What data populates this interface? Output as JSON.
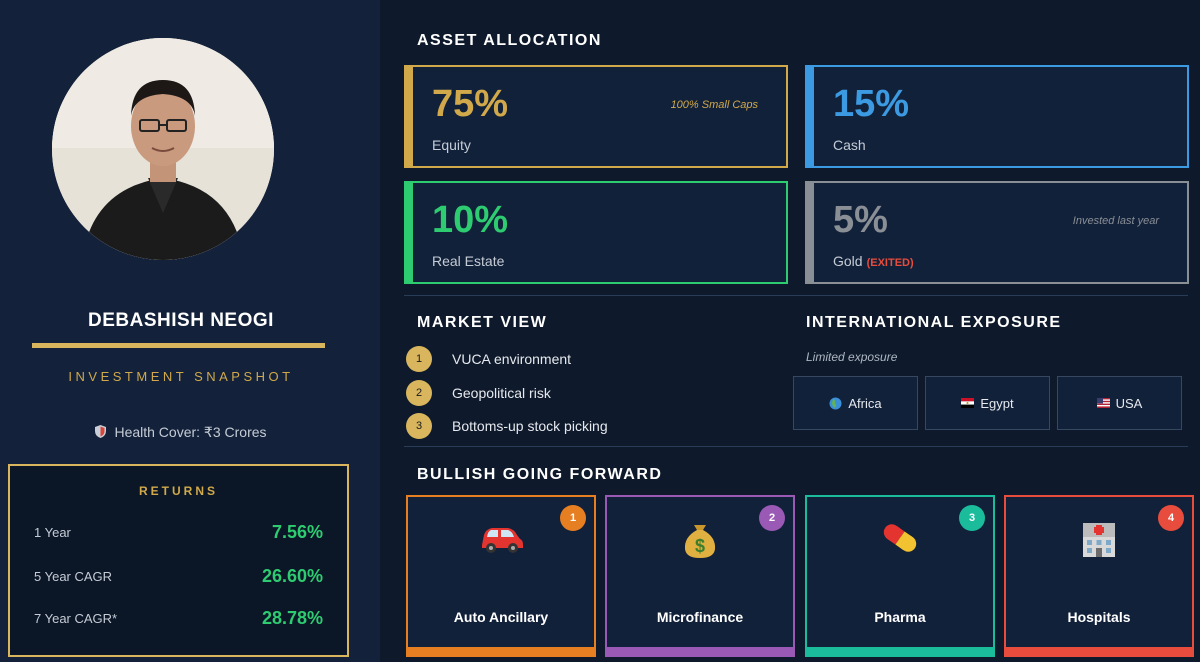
{
  "profile": {
    "name": "DEBASHISH NEOGI",
    "subtitle": "INVESTMENT SNAPSHOT",
    "health_cover": "Health Cover: ₹3 Crores"
  },
  "returns": {
    "title": "RETURNS",
    "rows": [
      {
        "label": "1 Year",
        "value": "7.56%"
      },
      {
        "label": "5 Year CAGR",
        "value": "26.60%"
      },
      {
        "label": "7 Year CAGR*",
        "value": "28.78%"
      }
    ]
  },
  "asset_allocation": {
    "title": "ASSET ALLOCATION",
    "items": [
      {
        "percent": "75%",
        "label": "Equity",
        "note": "100% Small Caps",
        "color": "#d1a94a"
      },
      {
        "percent": "15%",
        "label": "Cash",
        "note": "",
        "color": "#3b9ae1"
      },
      {
        "percent": "10%",
        "label": "Real Estate",
        "note": "",
        "color": "#2ecc71"
      },
      {
        "percent": "5%",
        "label": "Gold",
        "status": "(EXITED)",
        "note": "Invested last year",
        "color": "#8a8f96"
      }
    ]
  },
  "market_view": {
    "title": "MARKET VIEW",
    "items": [
      {
        "num": "1",
        "text": "VUCA environment"
      },
      {
        "num": "2",
        "text": "Geopolitical risk"
      },
      {
        "num": "3",
        "text": "Bottoms-up stock picking"
      }
    ]
  },
  "international": {
    "title": "INTERNATIONAL EXPOSURE",
    "subtitle": "Limited exposure",
    "countries": [
      {
        "name": "Africa",
        "icon": "globe-icon"
      },
      {
        "name": "Egypt",
        "icon": "egypt-flag-icon"
      },
      {
        "name": "USA",
        "icon": "usa-flag-icon"
      }
    ]
  },
  "bullish": {
    "title": "BULLISH GOING FORWARD",
    "items": [
      {
        "num": "1",
        "name": "Auto Ancillary",
        "icon": "car-icon",
        "color": "#e67e22"
      },
      {
        "num": "2",
        "name": "Microfinance",
        "icon": "money-bag-icon",
        "color": "#9b59b6"
      },
      {
        "num": "3",
        "name": "Pharma",
        "icon": "pill-icon",
        "color": "#1abc9c"
      },
      {
        "num": "4",
        "name": "Hospitals",
        "icon": "hospital-icon",
        "color": "#e74c3c"
      }
    ]
  }
}
